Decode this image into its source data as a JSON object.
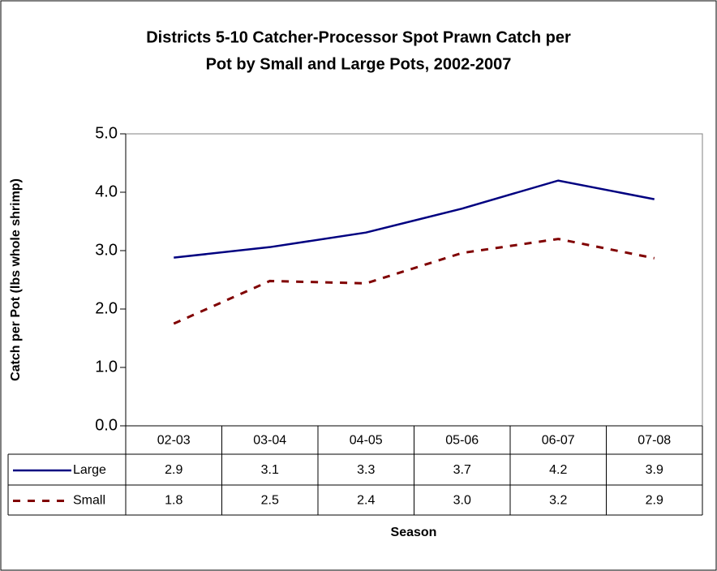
{
  "chart_data": {
    "type": "line",
    "title": [
      "Districts 5-10 Catcher-Processor Spot Prawn Catch per",
      "Pot by Small and Large Pots, 2002-2007"
    ],
    "y_label": "Catch per Pot (lbs whole shrimp)",
    "x_label": "Season",
    "categories": [
      "02-03",
      "03-04",
      "04-05",
      "05-06",
      "06-07",
      "07-08"
    ],
    "series": [
      {
        "name": "Large",
        "color": "#000080",
        "dash": "solid",
        "values": [
          2.88,
          3.06,
          3.31,
          3.72,
          4.2,
          3.88
        ],
        "value_labels": [
          "2.9",
          "3.1",
          "3.3",
          "3.7",
          "4.2",
          "3.9"
        ]
      },
      {
        "name": "Small",
        "color": "#800000",
        "dash": "dashed",
        "values": [
          1.75,
          2.48,
          2.44,
          2.96,
          3.2,
          2.87
        ],
        "value_labels": [
          "1.8",
          "2.5",
          "2.4",
          "3.0",
          "3.2",
          "2.9"
        ]
      }
    ],
    "ylim": [
      0,
      5
    ],
    "yticks": [
      {
        "value": 0,
        "label": "0.0"
      },
      {
        "value": 1,
        "label": "1.0"
      },
      {
        "value": 2,
        "label": "2.0"
      },
      {
        "value": 3,
        "label": "3.0"
      },
      {
        "value": 4,
        "label": "4.0"
      },
      {
        "value": 5,
        "label": "5.0"
      }
    ],
    "grid": false
  }
}
